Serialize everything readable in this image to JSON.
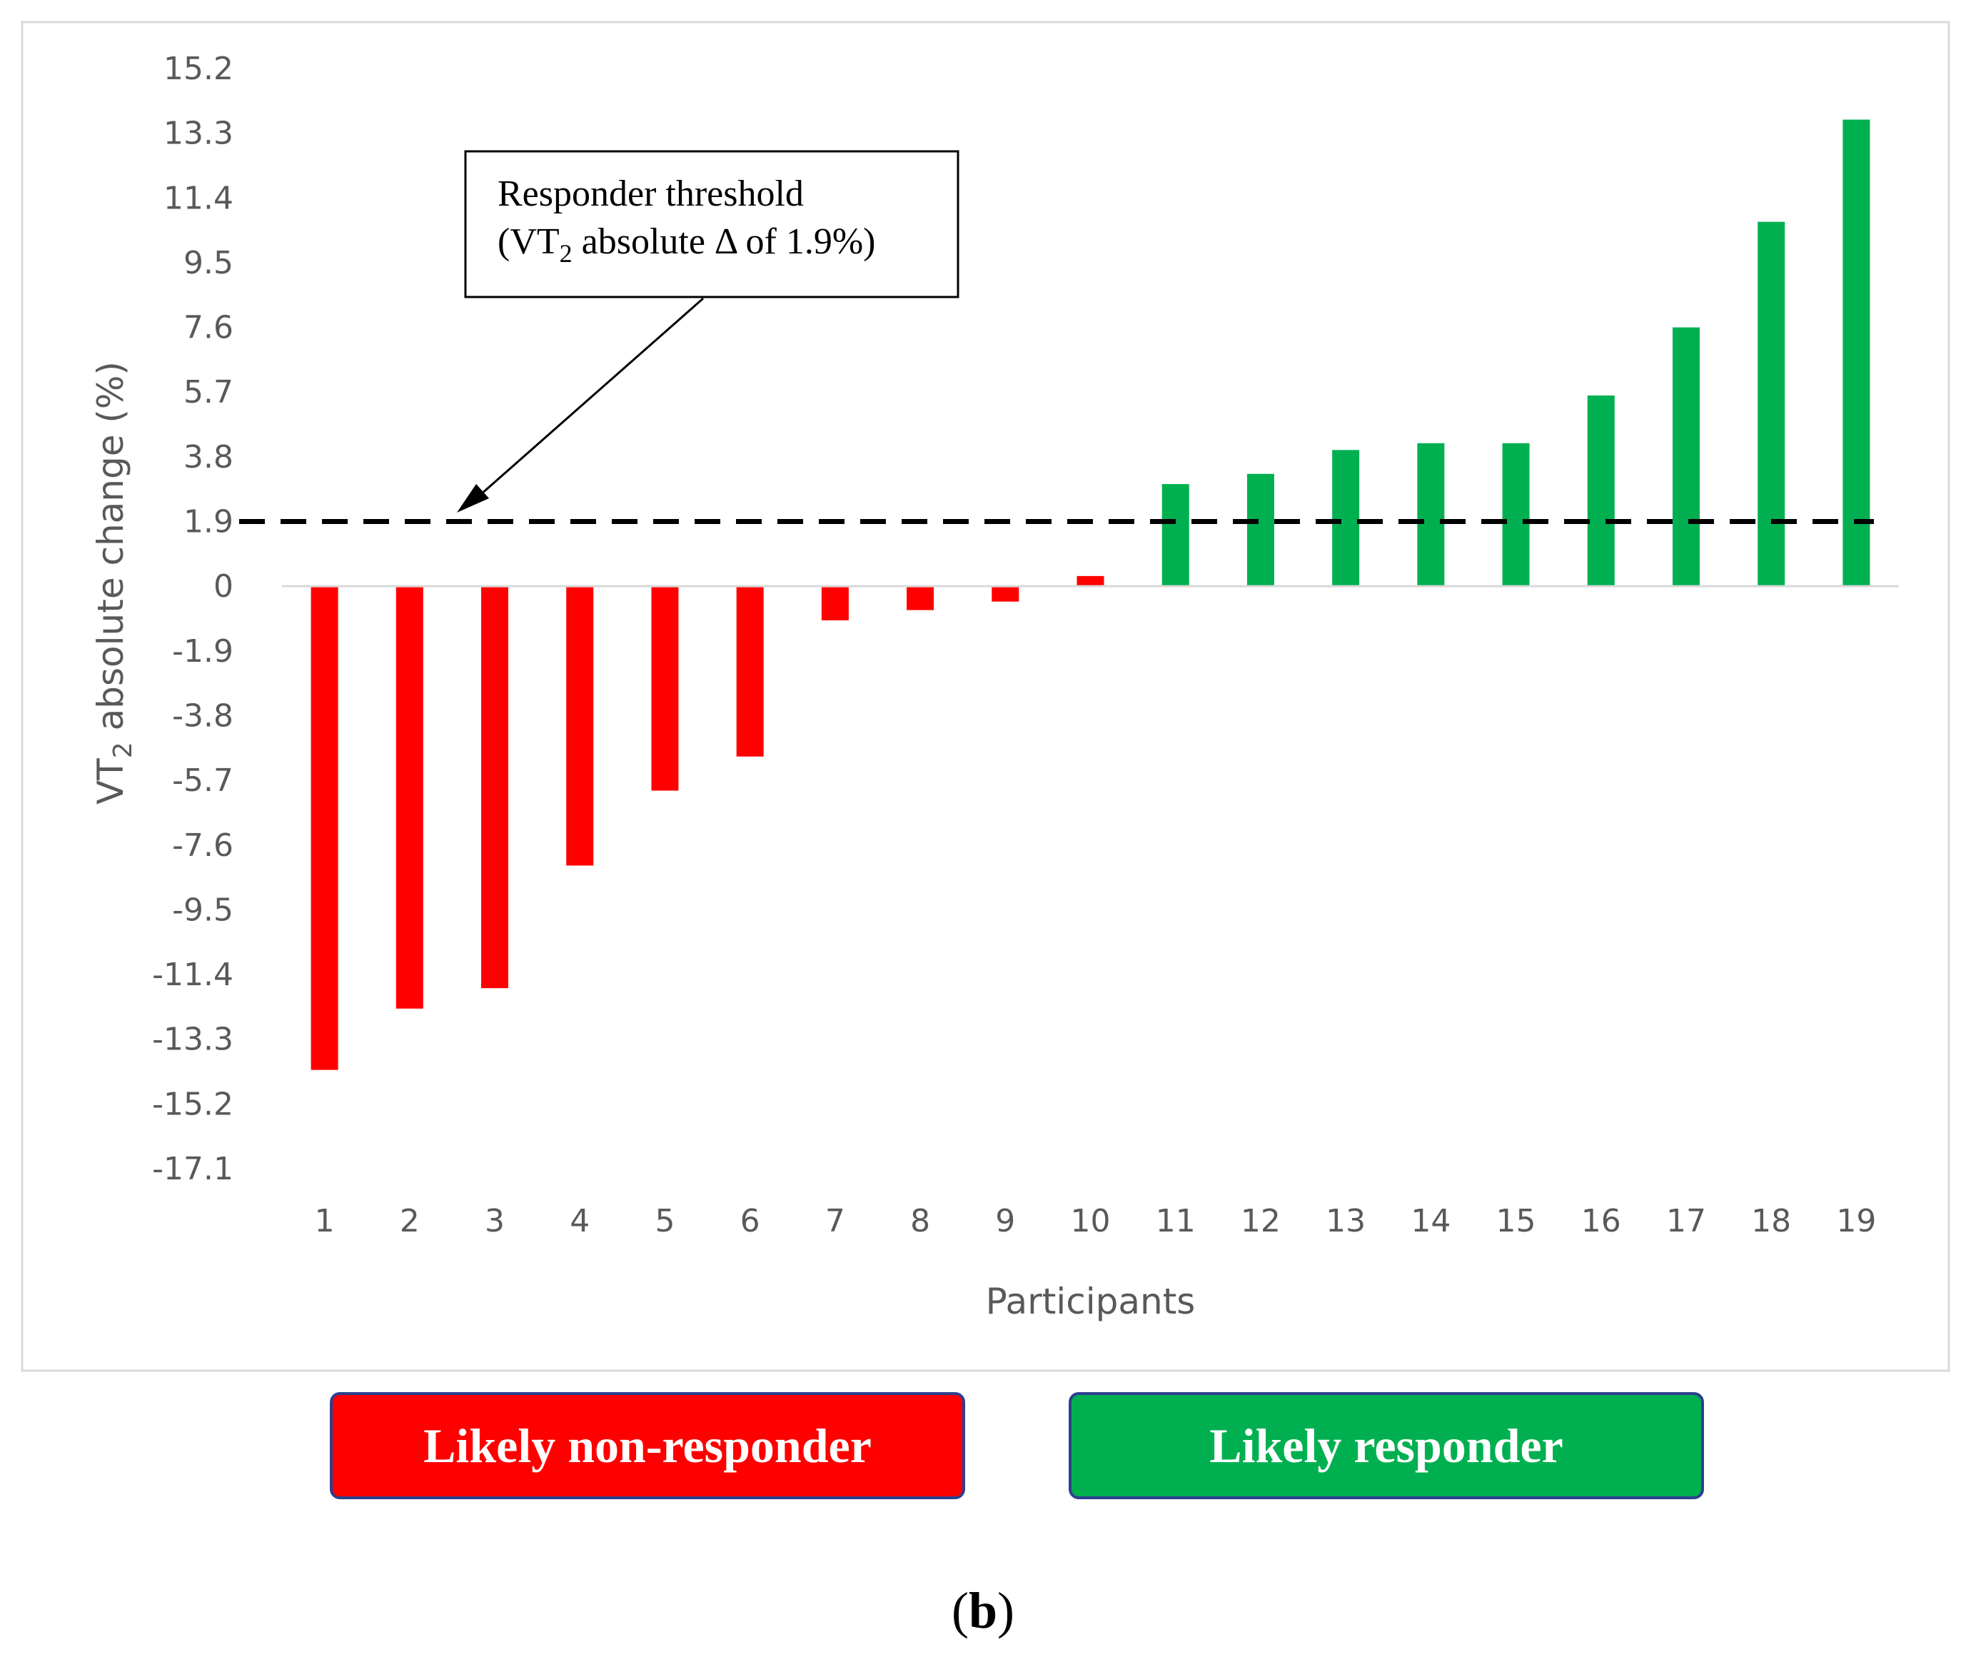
{
  "chart_data": {
    "type": "bar",
    "title": "",
    "xlabel": "Participants",
    "ylabel": "VT2 absolute change (%)",
    "ylabel_main": "VT",
    "ylabel_sub": "2",
    "ylabel_rest": " absolute change (%)",
    "categories": [
      "1",
      "2",
      "3",
      "4",
      "5",
      "6",
      "7",
      "8",
      "9",
      "10",
      "11",
      "12",
      "13",
      "14",
      "15",
      "16",
      "17",
      "18",
      "19"
    ],
    "values": [
      -14.2,
      -12.4,
      -11.8,
      -8.2,
      -6.0,
      -5.0,
      -1.0,
      -0.7,
      -0.45,
      0.3,
      3.0,
      3.3,
      4.0,
      4.2,
      4.2,
      5.6,
      7.6,
      10.7,
      13.7
    ],
    "yticks": [
      "15.2",
      "13.3",
      "11.4",
      "9.5",
      "7.6",
      "5.7",
      "3.8",
      "1.9",
      "0",
      "-1.9",
      "-3.8",
      "-5.7",
      "-7.6",
      "-9.5",
      "-11.4",
      "-13.3",
      "-15.2",
      "-17.1"
    ],
    "ylim": [
      -17.1,
      15.2
    ],
    "threshold": 1.9,
    "grid": false,
    "colors": {
      "negative": "#ff0000",
      "positive": "#00b050",
      "threshold": "#000000"
    },
    "annotation": {
      "line1": "Responder threshold",
      "line2_prefix": "(VT",
      "line2_sub": "2",
      "line2_suffix": " absolute Δ of 1.9%)"
    }
  },
  "legend": {
    "nonresponder_label": "Likely non-responder",
    "responder_label": "Likely responder",
    "nonresponder_color": "#ff0000",
    "responder_color": "#00b050"
  },
  "panel_label": {
    "open": "(",
    "letter": "b",
    "close": ")"
  }
}
